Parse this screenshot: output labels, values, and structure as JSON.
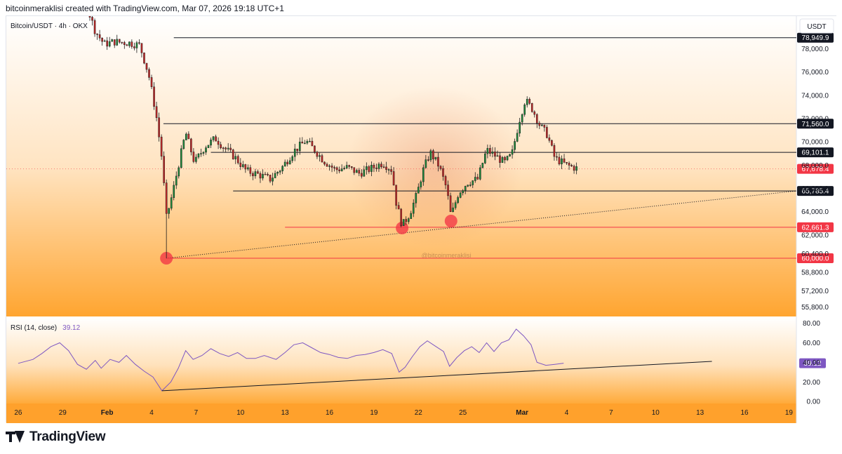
{
  "header": {
    "caption": "bitcoinmeraklisi created with TradingView.com, Mar 07, 2026 19:18 UTC+1"
  },
  "footer": {
    "brand": "TradingView"
  },
  "chart_data": {
    "type": "candlestick",
    "symbol_label": "Bitcoin/USDT · 4h · OKX",
    "currency_label": "USDT",
    "watermark": "@bitcoinmeraklisi",
    "price_axis": {
      "ticks": [
        "80,000.0",
        "78,000.0",
        "76,000.0",
        "74,000.0",
        "72,000.0",
        "70,000.0",
        "68,000.0",
        "66,000.0",
        "64,000.0",
        "62,000.0",
        "60,400.0",
        "58,800.0",
        "57,200.0",
        "55,800.0"
      ],
      "tick_values": [
        80000,
        78000,
        76000,
        74000,
        72000,
        70000,
        68000,
        66000,
        64000,
        62000,
        60400,
        58800,
        57200,
        55800
      ],
      "range": [
        55000,
        80800
      ]
    },
    "time_axis": {
      "labels": [
        "26",
        "29",
        "Feb",
        "4",
        "7",
        "10",
        "13",
        "16",
        "19",
        "22",
        "25",
        "Mar",
        "4",
        "7",
        "10",
        "13",
        "16",
        "19"
      ],
      "day_index": [
        0,
        3,
        6,
        9,
        12,
        15,
        18,
        21,
        24,
        27,
        30,
        34,
        37,
        40,
        43,
        46,
        49,
        52
      ],
      "range_days": [
        -0.8,
        52.5
      ]
    },
    "levels": [
      {
        "label": "78,949.9",
        "value": 78949.9,
        "color": "#131722",
        "from_day": 10.5
      },
      {
        "label": "71,560.0",
        "value": 71560.0,
        "color": "#131722",
        "from_day": 9.8
      },
      {
        "label": "69,101.1",
        "value": 69101.1,
        "color": "#131722",
        "from_day": 13.0
      },
      {
        "label": "65,785.4",
        "value": 65785.4,
        "color": "#131722",
        "from_day": 14.5
      },
      {
        "label": "62,661.3",
        "value": 62661.3,
        "color": "#f23645",
        "from_day": 18.0
      },
      {
        "label": "60,000.0",
        "value": 60000.0,
        "color": "#f23645",
        "from_day": 10.0
      }
    ],
    "last_price": {
      "label": "67,678.4",
      "value": 67678.4,
      "color": "#f23645"
    },
    "trendline_price": {
      "from": [
        10.0,
        60000
      ],
      "to": [
        52.5,
        65785.4
      ]
    },
    "low_markers": [
      {
        "day": 10.0,
        "value": 60000
      },
      {
        "day": 25.9,
        "value": 62600
      },
      {
        "day": 29.2,
        "value": 63200
      }
    ],
    "price_path": [
      [
        0,
        81500
      ],
      [
        2.0,
        82500
      ],
      [
        3.0,
        82800
      ],
      [
        3.8,
        82300
      ],
      [
        4.6,
        81800
      ],
      [
        5.2,
        79500
      ],
      [
        5.8,
        78400
      ],
      [
        6.5,
        78600
      ],
      [
        7.5,
        78500
      ],
      [
        8.2,
        78300
      ],
      [
        8.8,
        75800
      ],
      [
        9.3,
        72400
      ],
      [
        9.7,
        68500
      ],
      [
        10.0,
        63500
      ],
      [
        10.4,
        65500
      ],
      [
        10.9,
        68500
      ],
      [
        11.3,
        70800
      ],
      [
        11.9,
        68200
      ],
      [
        12.6,
        69600
      ],
      [
        13.3,
        70300
      ],
      [
        13.9,
        69500
      ],
      [
        14.6,
        68700
      ],
      [
        15.4,
        67500
      ],
      [
        16.2,
        67200
      ],
      [
        17.0,
        66800
      ],
      [
        17.8,
        67800
      ],
      [
        18.6,
        69200
      ],
      [
        19.4,
        70100
      ],
      [
        20.0,
        69300
      ],
      [
        20.6,
        68400
      ],
      [
        21.4,
        67600
      ],
      [
        22.2,
        67800
      ],
      [
        23.0,
        67300
      ],
      [
        23.8,
        67700
      ],
      [
        24.6,
        68200
      ],
      [
        25.2,
        67600
      ],
      [
        25.5,
        64800
      ],
      [
        25.9,
        62800
      ],
      [
        26.4,
        63800
      ],
      [
        26.9,
        65500
      ],
      [
        27.3,
        67500
      ],
      [
        27.8,
        69100
      ],
      [
        28.4,
        67900
      ],
      [
        28.9,
        66000
      ],
      [
        29.2,
        63600
      ],
      [
        29.7,
        65600
      ],
      [
        30.3,
        66500
      ],
      [
        31.0,
        66800
      ],
      [
        31.6,
        69300
      ],
      [
        32.2,
        68800
      ],
      [
        32.8,
        68200
      ],
      [
        33.3,
        68900
      ],
      [
        33.8,
        71800
      ],
      [
        34.2,
        73600
      ],
      [
        34.7,
        72800
      ],
      [
        35.2,
        71400
      ],
      [
        35.7,
        70600
      ],
      [
        36.2,
        68600
      ],
      [
        37.0,
        68000
      ],
      [
        37.8,
        67678
      ]
    ],
    "rsi": {
      "label": "RSI (14, close)",
      "current_label": "39.12",
      "current_value": 39.12,
      "color": "#7e57c2",
      "ticks": [
        "80.00",
        "60.00",
        "40.00",
        "20.00",
        "0.00"
      ],
      "tick_values": [
        80,
        60,
        40,
        20,
        0
      ],
      "range": [
        -2,
        84
      ],
      "trendline": {
        "from": [
          9.7,
          11
        ],
        "to": [
          46.8,
          41
        ]
      },
      "path": [
        [
          0,
          39
        ],
        [
          1.0,
          43
        ],
        [
          1.6,
          49
        ],
        [
          2.2,
          56
        ],
        [
          2.8,
          60
        ],
        [
          3.4,
          52
        ],
        [
          4.0,
          38
        ],
        [
          4.6,
          33
        ],
        [
          5.2,
          42
        ],
        [
          5.6,
          34
        ],
        [
          6.2,
          43
        ],
        [
          6.8,
          40
        ],
        [
          7.3,
          47
        ],
        [
          7.9,
          38
        ],
        [
          8.5,
          31
        ],
        [
          9.1,
          25
        ],
        [
          9.7,
          11
        ],
        [
          10.3,
          20
        ],
        [
          10.8,
          34
        ],
        [
          11.3,
          52
        ],
        [
          11.8,
          43
        ],
        [
          12.4,
          47
        ],
        [
          13.0,
          54
        ],
        [
          13.6,
          49
        ],
        [
          14.2,
          46
        ],
        [
          14.8,
          50
        ],
        [
          15.4,
          44
        ],
        [
          16.0,
          44
        ],
        [
          16.6,
          47
        ],
        [
          17.4,
          43
        ],
        [
          18.0,
          50
        ],
        [
          18.6,
          58
        ],
        [
          19.2,
          60
        ],
        [
          19.8,
          55
        ],
        [
          20.4,
          50
        ],
        [
          21.0,
          48
        ],
        [
          21.6,
          45
        ],
        [
          22.2,
          44
        ],
        [
          22.8,
          47
        ],
        [
          23.4,
          48
        ],
        [
          24.0,
          50
        ],
        [
          24.6,
          53
        ],
        [
          25.2,
          49
        ],
        [
          25.7,
          30
        ],
        [
          26.1,
          35
        ],
        [
          26.6,
          46
        ],
        [
          27.1,
          56
        ],
        [
          27.6,
          62
        ],
        [
          28.2,
          56
        ],
        [
          28.7,
          51
        ],
        [
          29.1,
          36
        ],
        [
          29.6,
          45
        ],
        [
          30.1,
          52
        ],
        [
          30.6,
          56
        ],
        [
          31.1,
          50
        ],
        [
          31.6,
          60
        ],
        [
          32.1,
          51
        ],
        [
          32.6,
          60
        ],
        [
          33.1,
          63
        ],
        [
          33.6,
          74
        ],
        [
          34.1,
          67
        ],
        [
          34.6,
          58
        ],
        [
          35.0,
          40
        ],
        [
          35.6,
          37
        ],
        [
          36.2,
          38
        ],
        [
          36.8,
          39.12
        ]
      ]
    }
  }
}
